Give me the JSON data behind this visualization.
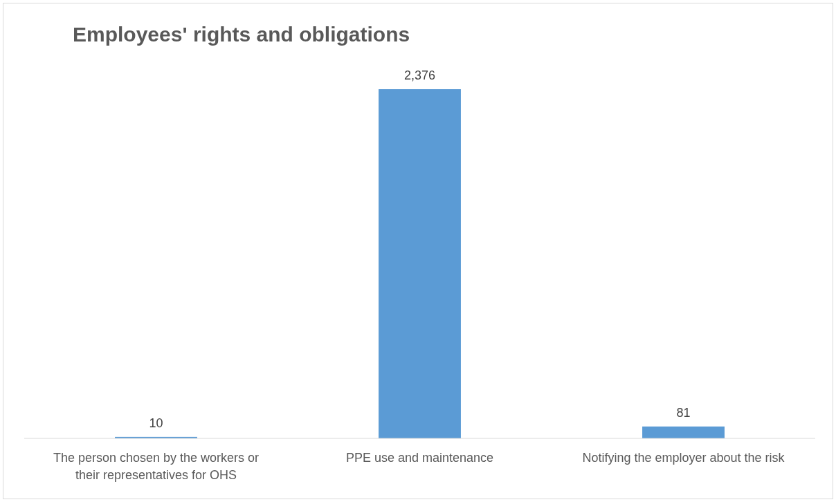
{
  "chart_data": {
    "type": "bar",
    "title": "Employees' rights and obligations",
    "categories": [
      "The person chosen by the workers or their representatives for OHS",
      "PPE use and maintenance",
      "Notifying the employer about the risk"
    ],
    "values": [
      10,
      2376,
      81
    ],
    "color": "#5b9bd5",
    "value_labels": [
      "10",
      "2,376",
      "81"
    ]
  }
}
